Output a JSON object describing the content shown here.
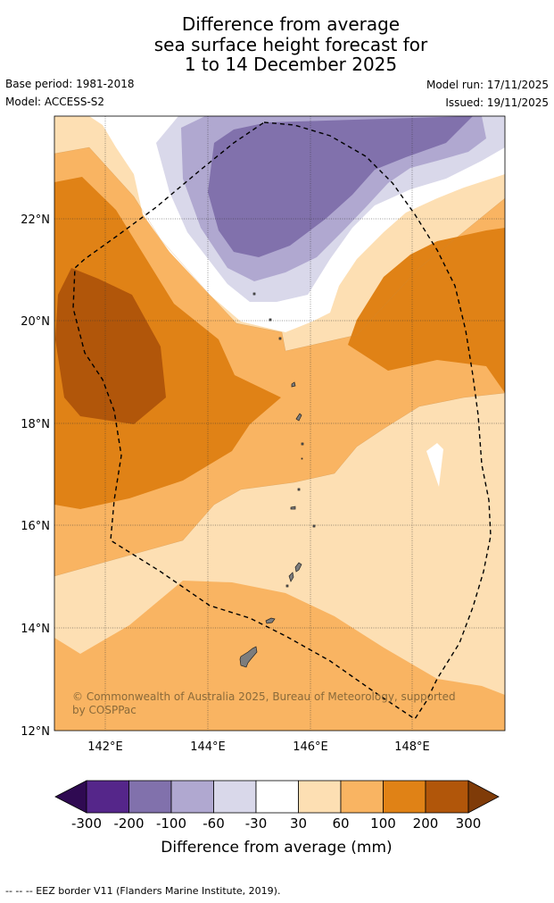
{
  "title_lines": [
    "Difference from average",
    "sea surface height forecast for",
    "1 to 14 December 2025"
  ],
  "base_period": "Base period: 1981-2018",
  "model": "Model: ACCESS-S2",
  "model_run": "Model run: 17/11/2025",
  "issued": "Issued: 19/11/2025",
  "map": {
    "lat_labels": [
      "22°N",
      "20°N",
      "18°N",
      "16°N",
      "14°N",
      "12°N"
    ],
    "lon_labels": [
      "142°E",
      "144°E",
      "146°E",
      "148°E"
    ],
    "copyright": "© Commonwealth of Australia 2025, Bureau of Meteorology, supported by COSPPac"
  },
  "colorbar": {
    "ticks": [
      "-300",
      "-200",
      "-100",
      "-60",
      "-30",
      "30",
      "60",
      "100",
      "200",
      "300"
    ],
    "label": "Difference from average (mm)",
    "colors": {
      "lt300": "#2f0a52",
      "n300_200": "#55268a",
      "n200_100": "#8171ac",
      "n100_60": "#b0a8d0",
      "n60_30": "#d9d8ea",
      "n30_30": "#ffffff",
      "p30_60": "#fddfb3",
      "p60_100": "#f9b462",
      "p100_200": "#e08216",
      "p200_300": "#b1560a",
      "gt300": "#7f3b08"
    }
  },
  "footer": "--  --  -- EEZ border V11 (Flanders Marine Institute, 2019)."
}
